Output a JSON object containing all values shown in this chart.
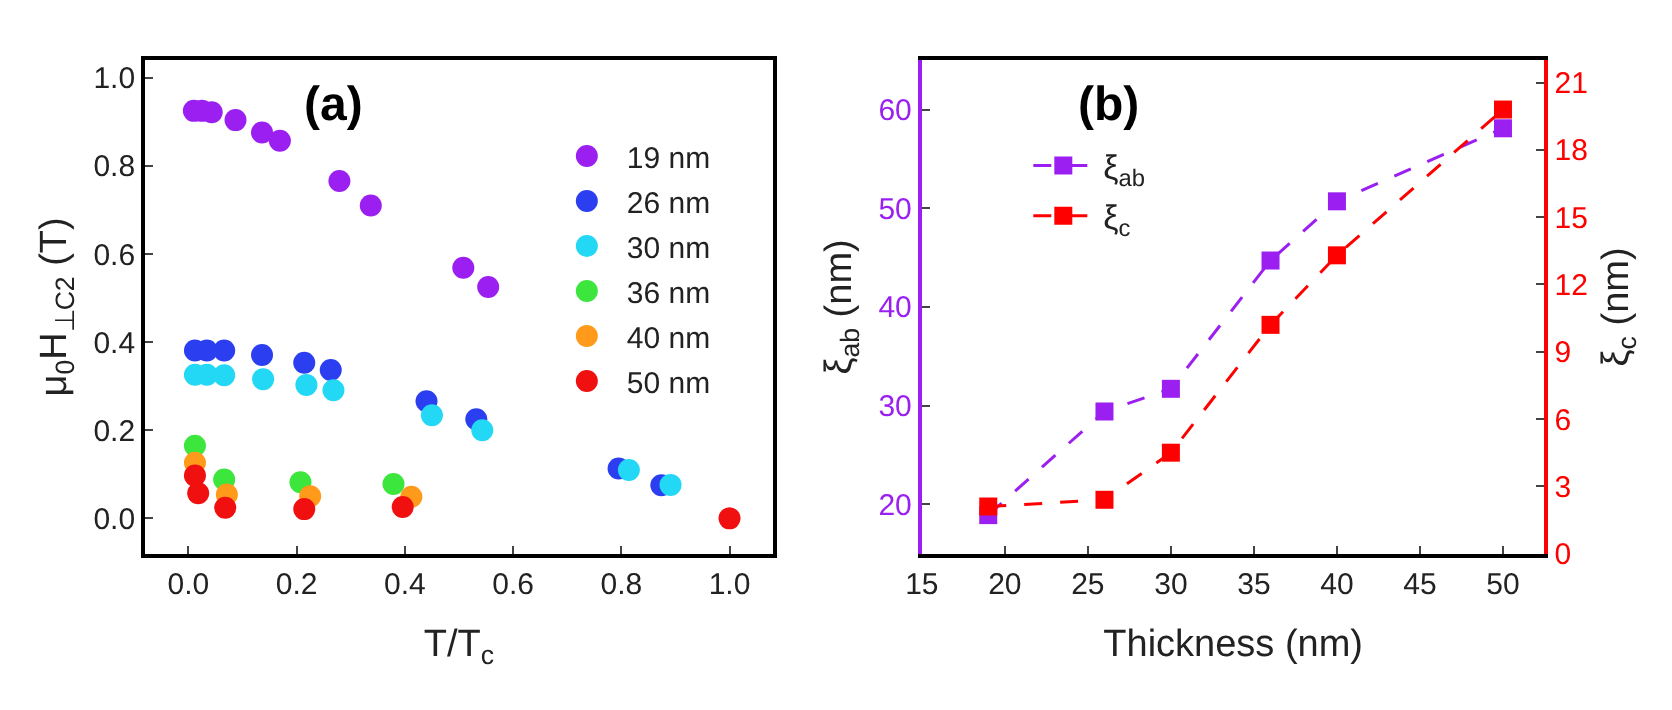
{
  "chart_data": [
    {
      "type": "scatter",
      "xlabel": "T/T$_{c}$",
      "ylabel": "μ$_{0}$H$_{⊥C2}$ (T)",
      "annotations": [
        "(a)"
      ],
      "xlim": [
        -0.08,
        1.08
      ],
      "ylim": [
        -0.08,
        1.04
      ],
      "xticks": [
        {
          "value": 0,
          "label": "0.0"
        },
        0.2,
        0.4,
        0.6,
        0.8,
        {
          "value": 1,
          "label": "1.0"
        }
      ],
      "yticks": [
        {
          "value": 0,
          "label": "0.0"
        },
        0.2,
        0.4,
        0.6,
        0.8,
        {
          "value": 1,
          "label": "1.0"
        }
      ],
      "legend": "top right",
      "marker": "circle",
      "series": [
        {
          "name": "19 nm",
          "color": "#9b1ff0",
          "x": [
            0.01,
            0.025,
            0.043,
            0.087,
            0.136,
            0.169,
            0.279,
            0.337,
            0.508,
            0.554
          ],
          "values": [
            0.925,
            0.925,
            0.922,
            0.904,
            0.876,
            0.857,
            0.766,
            0.71,
            0.569,
            0.525
          ]
        },
        {
          "name": "26 nm",
          "color": "#2b3ff0",
          "x": [
            0.012,
            0.034,
            0.066,
            0.136,
            0.214,
            0.263,
            0.44,
            0.532,
            0.795,
            0.874
          ],
          "values": [
            0.381,
            0.381,
            0.381,
            0.371,
            0.353,
            0.337,
            0.266,
            0.225,
            0.113,
            0.075
          ]
        },
        {
          "name": "30 nm",
          "color": "#22d8f5",
          "x": [
            0.012,
            0.034,
            0.066,
            0.138,
            0.218,
            0.268,
            0.45,
            0.543,
            0.814,
            0.891
          ],
          "values": [
            0.326,
            0.326,
            0.325,
            0.316,
            0.303,
            0.291,
            0.234,
            0.2,
            0.11,
            0.076
          ]
        },
        {
          "name": "36 nm",
          "color": "#3ce63c",
          "x": [
            0.012,
            0.066,
            0.207,
            0.379
          ],
          "values": [
            0.165,
            0.088,
            0.082,
            0.078
          ]
        },
        {
          "name": "40 nm",
          "color": "#ff9a1a",
          "x": [
            0.012,
            0.071,
            0.225,
            0.412
          ],
          "values": [
            0.126,
            0.054,
            0.05,
            0.049
          ]
        },
        {
          "name": "50 nm",
          "color": "#f01010",
          "x": [
            0.012,
            0.018,
            0.068,
            0.214,
            0.396,
            1.0
          ],
          "values": [
            0.097,
            0.057,
            0.024,
            0.021,
            0.026,
            0.0
          ]
        }
      ]
    },
    {
      "type": "line",
      "xlabel": "Thickness (nm)",
      "ylabel": "ξ$_{ab}$ (nm)",
      "y2label": "ξ$_{c}$ (nm)",
      "annotations": [
        "(b)"
      ],
      "xlim": [
        15,
        52.5
      ],
      "ylim": [
        15,
        65
      ],
      "y2lim": [
        0,
        22
      ],
      "xticks": [
        15,
        20,
        25,
        30,
        35,
        40,
        45,
        50
      ],
      "yticks": [
        20,
        30,
        40,
        50,
        60
      ],
      "y2ticks": [
        0,
        3,
        6,
        9,
        12,
        15,
        18,
        21
      ],
      "legend": "top left",
      "marker": "square",
      "line_style": "dashed",
      "x": [
        19,
        26,
        30,
        36,
        40,
        50
      ],
      "series": [
        {
          "name": "ξ$_{ab}$",
          "color": "#9b1ff0",
          "values": [
            18.9,
            29.4,
            31.7,
            44.7,
            50.7,
            58.1
          ]
        },
        {
          "name": "ξ$_{c}$",
          "color": "#ff0000",
          "axis": "y2",
          "values": [
            2.1,
            2.4,
            4.5,
            10.2,
            13.3,
            19.8
          ]
        }
      ]
    }
  ]
}
